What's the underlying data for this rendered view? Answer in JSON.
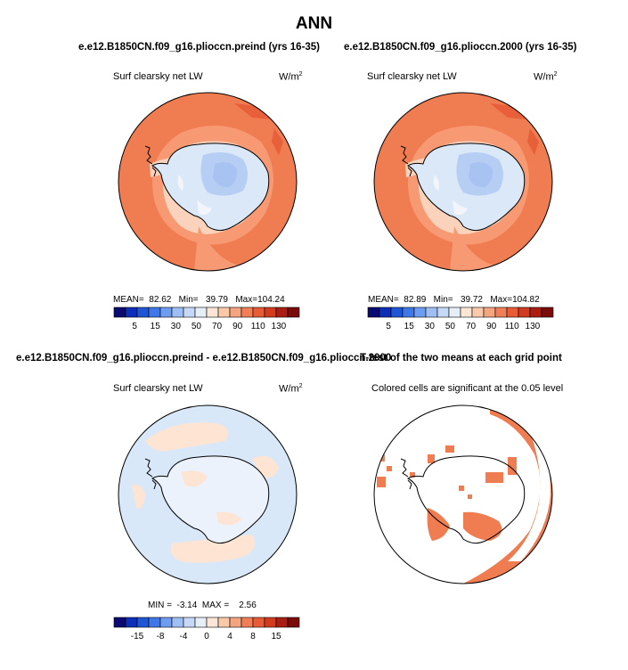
{
  "figure": {
    "title": "ANN"
  },
  "panels": [
    {
      "case_title": "e.e12.B1850CN.f09_g16.plioccn.preind (yrs 16-35)",
      "label": "Surf clearsky net LW",
      "units": "W/m",
      "units_sup": "2",
      "stats": {
        "mean_label": "MEAN=",
        "mean": "82.62",
        "min_label": "Min=",
        "min": "39.79",
        "max_label": "Max=",
        "max": "104.24"
      }
    },
    {
      "case_title": "e.e12.B1850CN.f09_g16.plioccn.2000 (yrs 16-35)",
      "label": "Surf clearsky net LW",
      "units": "W/m",
      "units_sup": "2",
      "stats": {
        "mean_label": "MEAN=",
        "mean": "82.89",
        "min_label": "Min=",
        "min": "39.72",
        "max_label": "Max=",
        "max": "104.82"
      }
    },
    {
      "case_title": "e.e12.B1850CN.f09_g16.plioccn.preind - e.e12.B1850CN.f09_g16.plioccn.2000",
      "label": "Surf clearsky net LW",
      "units": "W/m",
      "units_sup": "2",
      "stats": {
        "min_label": "MIN =",
        "min": "-3.14",
        "max_label": "MAX =",
        "max": "2.56"
      }
    },
    {
      "case_title": "T-test of the two means at each grid point",
      "label": "Colored cells are significant at the 0.05 level"
    }
  ],
  "colorbar_abs": {
    "colors": [
      "#0a0a72",
      "#0d2fb8",
      "#1f56d6",
      "#3f78e6",
      "#6e9cf0",
      "#9fbff4",
      "#c5d8f6",
      "#e6eef8",
      "#fde6d6",
      "#f9c9aa",
      "#f4a47f",
      "#f07f57",
      "#e75c36",
      "#d13b1f",
      "#aa1d12",
      "#7a0b08"
    ],
    "labels": [
      "5",
      "15",
      "30",
      "50",
      "70",
      "90",
      "110",
      "130"
    ]
  },
  "colorbar_diff": {
    "colors": [
      "#0a0a72",
      "#0d2fb8",
      "#1f56d6",
      "#3f78e6",
      "#6e9cf0",
      "#9fbff4",
      "#c5d8f6",
      "#e6eef8",
      "#fde6d6",
      "#f9c9aa",
      "#f4a47f",
      "#f07f57",
      "#e75c36",
      "#d13b1f",
      "#aa1d12",
      "#7a0b08"
    ],
    "labels": [
      "-15",
      "-8",
      "-4",
      "0",
      "4",
      "8",
      "15"
    ]
  },
  "colors": {
    "ocean_warm": "#f07c52",
    "ocean_band": "#f79a74",
    "ice_edge": "#fbd3bc",
    "ice_light_blue": "#dbe8f8",
    "ice_mid_blue": "#b6cdf4",
    "ice_core_blue": "#a8c2f2",
    "diff_background": "#d8e8f8",
    "diff_peach": "#fde4d3",
    "ttest_significant": "#f07c52"
  }
}
